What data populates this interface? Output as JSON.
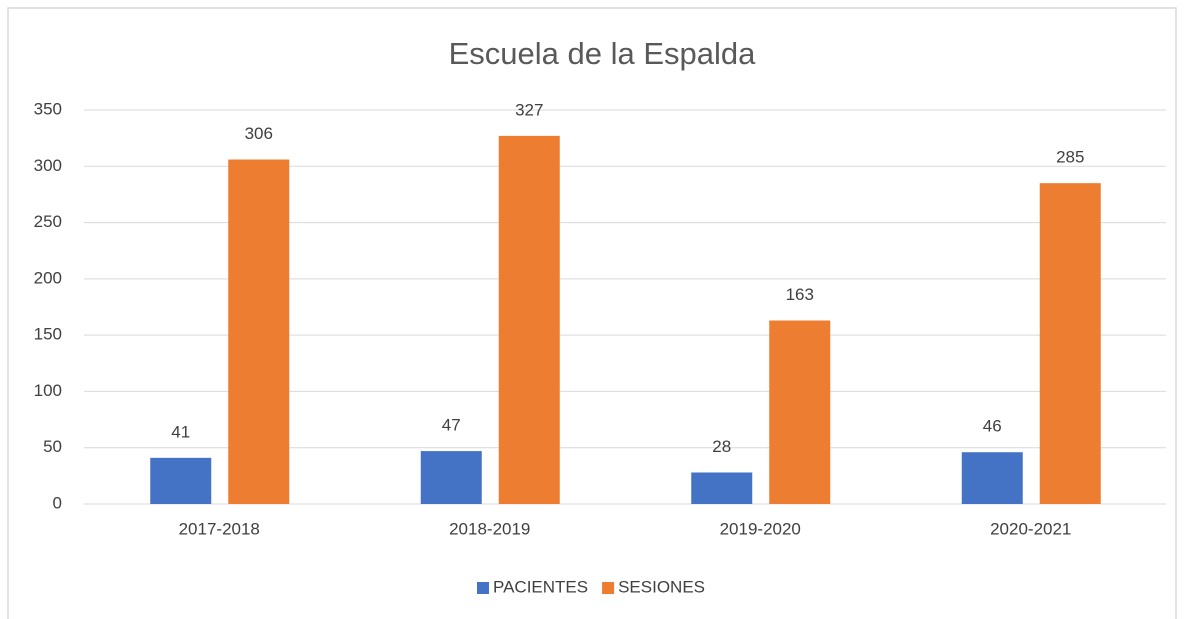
{
  "chart_data": {
    "type": "bar",
    "title": "Escuela de la Espalda",
    "categories": [
      "2017-2018",
      "2018-2019",
      "2019-2020",
      "2020-2021"
    ],
    "series": [
      {
        "name": "PACIENTES",
        "color": "#4472c4",
        "values": [
          41,
          47,
          28,
          46
        ]
      },
      {
        "name": "SESIONES",
        "color": "#ed7d31",
        "values": [
          306,
          327,
          163,
          285
        ]
      }
    ],
    "ylim": [
      0,
      350
    ],
    "yticks": [
      0,
      50,
      100,
      150,
      200,
      250,
      300,
      350
    ],
    "grid": true,
    "legend": "bottom"
  }
}
